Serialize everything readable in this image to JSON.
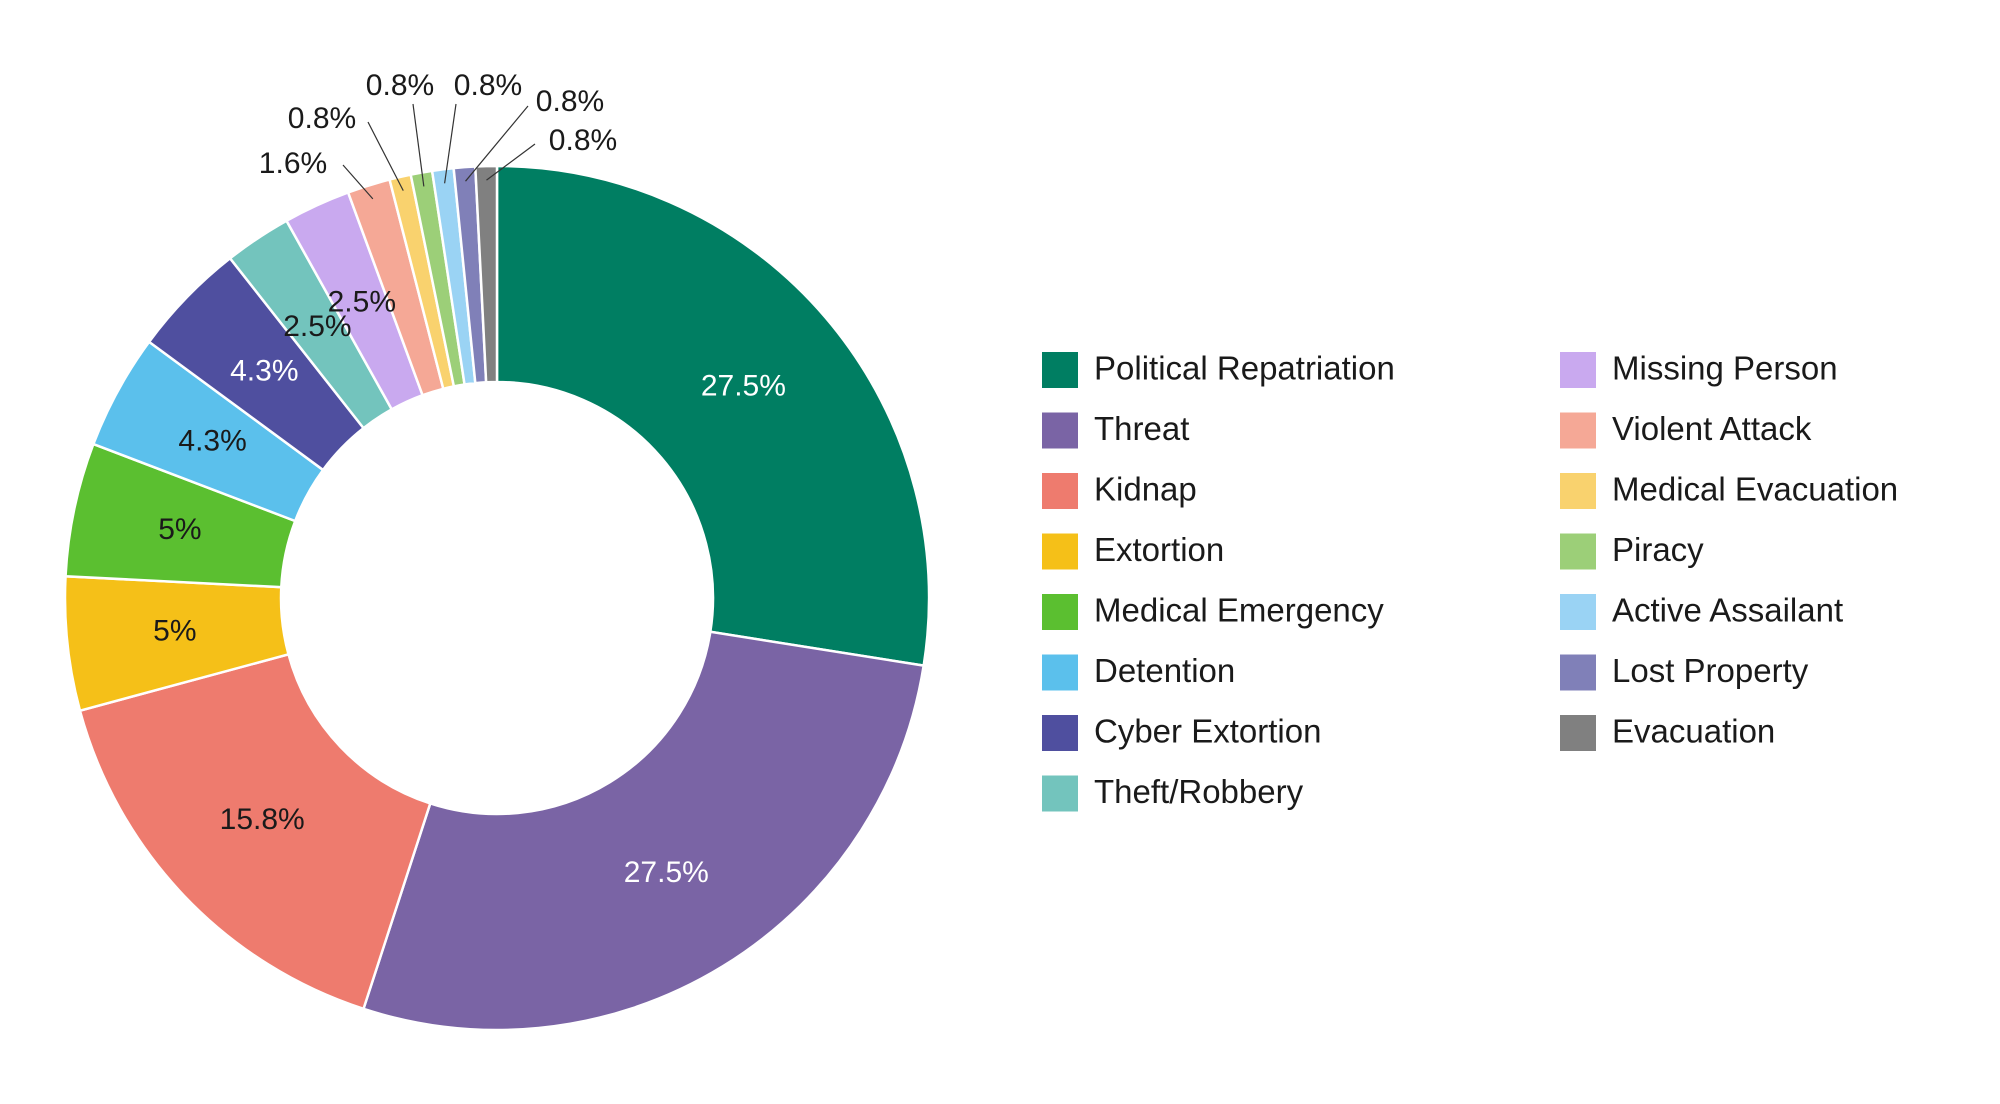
{
  "chart_data": {
    "type": "pie",
    "donut": true,
    "title": "",
    "legend_position": "right",
    "slices": [
      {
        "name": "Political Repatriation",
        "value": 27.5,
        "label": "27.5%",
        "color": "#007e62",
        "label_color": "#ffffff"
      },
      {
        "name": "Threat",
        "value": 27.5,
        "label": "27.5%",
        "color": "#7a64a5",
        "label_color": "#ffffff"
      },
      {
        "name": "Kidnap",
        "value": 15.8,
        "label": "15.8%",
        "color": "#ee7b6e",
        "label_color": "#1a1a1a"
      },
      {
        "name": "Extortion",
        "value": 5,
        "label": "5%",
        "color": "#f5c018",
        "label_color": "#1a1a1a"
      },
      {
        "name": "Medical Emergency",
        "value": 5,
        "label": "5%",
        "color": "#5bbf30",
        "label_color": "#1a1a1a"
      },
      {
        "name": "Detention",
        "value": 4.3,
        "label": "4.3%",
        "color": "#5bc0ec",
        "label_color": "#1a1a1a"
      },
      {
        "name": "Cyber Extortion",
        "value": 4.3,
        "label": "4.3%",
        "color": "#4f4f9f",
        "label_color": "#ffffff"
      },
      {
        "name": "Theft/Robbery",
        "value": 2.5,
        "label": "2.5%",
        "color": "#73c4bd",
        "label_color": "#1a1a1a"
      },
      {
        "name": "Missing Person",
        "value": 2.5,
        "label": "2.5%",
        "color": "#c9a9ef",
        "label_color": "#1a1a1a"
      },
      {
        "name": "Violent Attack",
        "value": 1.6,
        "label": "1.6%",
        "color": "#f5a896",
        "label_color": "#1a1a1a"
      },
      {
        "name": "Medical Evacuation",
        "value": 0.8,
        "label": "0.8%",
        "color": "#f9d26e",
        "label_color": "#1a1a1a"
      },
      {
        "name": "Piracy",
        "value": 0.8,
        "label": "0.8%",
        "color": "#9ccf78",
        "label_color": "#1a1a1a"
      },
      {
        "name": "Active Assailant",
        "value": 0.8,
        "label": "0.8%",
        "color": "#9ad3f4",
        "label_color": "#1a1a1a"
      },
      {
        "name": "Lost Property",
        "value": 0.8,
        "label": "0.8%",
        "color": "#8080b8",
        "label_color": "#1a1a1a"
      },
      {
        "name": "Evacuation",
        "value": 0.8,
        "label": "0.8%",
        "color": "#808080",
        "label_color": "#1a1a1a"
      }
    ]
  }
}
